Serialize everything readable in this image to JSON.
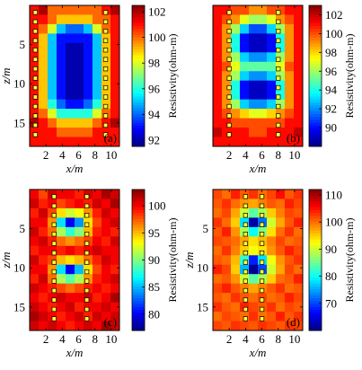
{
  "chart_data": [
    {
      "type": "heatmap",
      "panel_label": "(a)",
      "xlabel": "x/m",
      "ylabel": "z/m",
      "colorbar_label": "Resistivity(ohm-m)",
      "x_ticks": [
        "2",
        "4",
        "6",
        "8",
        "10"
      ],
      "y_ticks": [
        "5",
        "10",
        "15"
      ],
      "xlim": [
        0,
        11
      ],
      "ylim": [
        0,
        18
      ],
      "grid_cols": 10,
      "grid_rows": 15,
      "colorbar_ticks": [
        "102",
        "100",
        "98",
        "96",
        "94",
        "92"
      ],
      "clim": [
        91.5,
        102.5
      ],
      "borehole_x": [
        0.7,
        9.3
      ],
      "electrode_z": [
        0.9,
        2.1,
        3.3,
        4.5,
        5.7,
        6.9,
        8.1,
        9.3,
        10.5,
        11.7,
        12.9,
        14.1,
        15.3,
        16.5
      ],
      "grid": [
        [
          101,
          102,
          100,
          100,
          100,
          100,
          100,
          100,
          101,
          102
        ],
        [
          101,
          101,
          100,
          99,
          99,
          99,
          99,
          100,
          100,
          101
        ],
        [
          101,
          100,
          98,
          95,
          94,
          94,
          95,
          98,
          100,
          101
        ],
        [
          101,
          99,
          95,
          93,
          93,
          93,
          93,
          95,
          99,
          101
        ],
        [
          101,
          99,
          95,
          93,
          92,
          92,
          93,
          95,
          99,
          101
        ],
        [
          101,
          99,
          95,
          93,
          92,
          92,
          93,
          95,
          99,
          101
        ],
        [
          101,
          99,
          95,
          93,
          92,
          92,
          93,
          95,
          99,
          101
        ],
        [
          101,
          99,
          95,
          93,
          92,
          92,
          93,
          95,
          99,
          101
        ],
        [
          101,
          99,
          95,
          93,
          92,
          92,
          93,
          95,
          99,
          101
        ],
        [
          101,
          99,
          95,
          93,
          92,
          92,
          93,
          95,
          99,
          101
        ],
        [
          101,
          99,
          96,
          94,
          93,
          93,
          94,
          96,
          99,
          101
        ],
        [
          101,
          100,
          98,
          96,
          96,
          96,
          96,
          98,
          100,
          101
        ],
        [
          102,
          101,
          100,
          99,
          99,
          99,
          99,
          100,
          101,
          102
        ],
        [
          101,
          101,
          101,
          100,
          100,
          100,
          100,
          101,
          101,
          101
        ],
        [
          101,
          101,
          101,
          101,
          101,
          101,
          101,
          101,
          101,
          101
        ]
      ]
    },
    {
      "type": "heatmap",
      "panel_label": "(b)",
      "xlabel": "x/m",
      "ylabel": "",
      "colorbar_label": "Resistivity(ohm-m)",
      "x_ticks": [
        "2",
        "4",
        "6",
        "8",
        "10"
      ],
      "y_ticks": [],
      "xlim": [
        0,
        11
      ],
      "ylim": [
        0,
        18
      ],
      "grid_cols": 10,
      "grid_rows": 15,
      "colorbar_ticks": [
        "102",
        "100",
        "98",
        "96",
        "94",
        "92",
        "90"
      ],
      "clim": [
        88,
        103
      ],
      "borehole_x": [
        2.0,
        8.0
      ],
      "electrode_z": [
        0.9,
        2.1,
        3.3,
        4.5,
        5.7,
        6.9,
        8.1,
        9.3,
        10.5,
        11.7,
        12.9,
        14.1,
        15.3,
        16.5
      ],
      "grid": [
        [
          101,
          101,
          100,
          100,
          99,
          99,
          100,
          100,
          101,
          101
        ],
        [
          101,
          100,
          99,
          97,
          96,
          96,
          97,
          99,
          100,
          101
        ],
        [
          101,
          99,
          96,
          93,
          91,
          91,
          93,
          96,
          99,
          101
        ],
        [
          101,
          99,
          94,
          90,
          89,
          89,
          90,
          94,
          99,
          101
        ],
        [
          101,
          99,
          94,
          90,
          89,
          89,
          90,
          94,
          99,
          101
        ],
        [
          101,
          99,
          96,
          93,
          92,
          92,
          93,
          96,
          99,
          101
        ],
        [
          101,
          100,
          97,
          95,
          95,
          95,
          95,
          97,
          100,
          101
        ],
        [
          101,
          99,
          96,
          93,
          92,
          92,
          93,
          96,
          99,
          101
        ],
        [
          101,
          99,
          94,
          90,
          89,
          89,
          90,
          94,
          99,
          101
        ],
        [
          101,
          99,
          94,
          90,
          89,
          89,
          90,
          94,
          99,
          101
        ],
        [
          101,
          99,
          96,
          93,
          92,
          92,
          93,
          96,
          99,
          101
        ],
        [
          101,
          100,
          99,
          98,
          97,
          97,
          98,
          99,
          100,
          101
        ],
        [
          101,
          101,
          100,
          100,
          100,
          100,
          100,
          100,
          101,
          101
        ],
        [
          102,
          101,
          101,
          101,
          100,
          100,
          101,
          101,
          101,
          102
        ],
        [
          101,
          101,
          101,
          101,
          101,
          101,
          101,
          101,
          101,
          101
        ]
      ]
    },
    {
      "type": "heatmap",
      "panel_label": "(c)",
      "xlabel": "x/m",
      "ylabel": "z/m",
      "colorbar_label": "Resistivity(ohm-m)",
      "x_ticks": [
        "2",
        "4",
        "6",
        "8",
        "10"
      ],
      "y_ticks": [
        "5",
        "10",
        "15"
      ],
      "xlim": [
        0,
        11
      ],
      "ylim": [
        0,
        18
      ],
      "grid_cols": 10,
      "grid_rows": 15,
      "colorbar_ticks": [
        "100",
        "95",
        "90",
        "85",
        "80"
      ],
      "clim": [
        77,
        103
      ],
      "borehole_x": [
        3.0,
        7.0
      ],
      "electrode_z": [
        0.9,
        2.1,
        3.3,
        4.5,
        5.7,
        6.9,
        8.1,
        9.3,
        10.5,
        11.7,
        12.9,
        14.1,
        15.3,
        16.5
      ],
      "grid": [
        [
          100,
          98,
          101,
          100,
          100,
          99,
          101,
          100,
          102,
          101
        ],
        [
          101,
          99,
          100,
          98,
          99,
          100,
          99,
          101,
          100,
          102
        ],
        [
          99,
          101,
          98,
          94,
          92,
          93,
          96,
          99,
          101,
          100
        ],
        [
          100,
          100,
          96,
          86,
          80,
          84,
          94,
          98,
          100,
          101
        ],
        [
          101,
          99,
          97,
          91,
          88,
          90,
          95,
          99,
          100,
          99
        ],
        [
          100,
          101,
          99,
          97,
          96,
          97,
          98,
          100,
          99,
          101
        ],
        [
          99,
          100,
          100,
          99,
          100,
          99,
          100,
          101,
          100,
          100
        ],
        [
          101,
          99,
          98,
          95,
          94,
          95,
          97,
          99,
          101,
          100
        ],
        [
          100,
          100,
          96,
          86,
          80,
          85,
          94,
          98,
          100,
          99
        ],
        [
          99,
          101,
          97,
          91,
          89,
          91,
          96,
          99,
          100,
          101
        ],
        [
          101,
          100,
          99,
          98,
          97,
          98,
          99,
          100,
          99,
          100
        ],
        [
          100,
          99,
          100,
          101,
          100,
          100,
          101,
          99,
          100,
          102
        ],
        [
          101,
          100,
          99,
          100,
          101,
          99,
          100,
          100,
          101,
          100
        ],
        [
          102,
          101,
          100,
          99,
          100,
          101,
          99,
          101,
          100,
          101
        ],
        [
          101,
          100,
          101,
          100,
          99,
          100,
          101,
          100,
          102,
          101
        ]
      ]
    },
    {
      "type": "heatmap",
      "panel_label": "(d)",
      "xlabel": "x/m",
      "ylabel": "z/m",
      "colorbar_label": "Resistivity(ohm-m)",
      "x_ticks": [
        "2",
        "4",
        "6",
        "8",
        "10"
      ],
      "y_ticks": [
        "5",
        "10",
        "15"
      ],
      "xlim": [
        0,
        11
      ],
      "ylim": [
        0,
        18
      ],
      "grid_cols": 10,
      "grid_rows": 15,
      "colorbar_ticks": [
        "110",
        "100",
        "90",
        "80",
        "70"
      ],
      "clim": [
        60,
        112
      ],
      "borehole_x": [
        4.0,
        6.0
      ],
      "electrode_z": [
        0.9,
        2.1,
        3.3,
        4.5,
        5.7,
        6.9,
        8.1,
        9.3,
        10.5,
        11.7,
        12.9,
        14.1,
        15.3,
        16.5
      ],
      "grid": [
        [
          102,
          100,
          104,
          101,
          103,
          100,
          102,
          105,
          101,
          103
        ],
        [
          101,
          103,
          100,
          98,
          97,
          99,
          101,
          100,
          104,
          102
        ],
        [
          100,
          102,
          97,
          90,
          84,
          88,
          95,
          99,
          102,
          101
        ],
        [
          103,
          100,
          95,
          78,
          62,
          72,
          90,
          97,
          101,
          104
        ],
        [
          101,
          104,
          98,
          88,
          80,
          86,
          94,
          100,
          103,
          100
        ],
        [
          102,
          101,
          100,
          97,
          94,
          96,
          99,
          102,
          100,
          101
        ],
        [
          100,
          103,
          99,
          95,
          92,
          94,
          98,
          101,
          104,
          102
        ],
        [
          101,
          100,
          96,
          82,
          68,
          78,
          92,
          98,
          101,
          103
        ],
        [
          104,
          102,
          95,
          76,
          61,
          70,
          90,
          97,
          102,
          100
        ],
        [
          100,
          101,
          98,
          90,
          84,
          88,
          95,
          100,
          101,
          104
        ],
        [
          102,
          104,
          101,
          99,
          97,
          99,
          101,
          103,
          100,
          101
        ],
        [
          101,
          100,
          103,
          101,
          100,
          102,
          100,
          101,
          104,
          102
        ],
        [
          103,
          101,
          100,
          104,
          102,
          101,
          103,
          100,
          102,
          101
        ],
        [
          100,
          102,
          101,
          100,
          103,
          100,
          101,
          104,
          101,
          103
        ],
        [
          102,
          101,
          103,
          102,
          101,
          103,
          102,
          101,
          103,
          102
        ]
      ]
    }
  ]
}
